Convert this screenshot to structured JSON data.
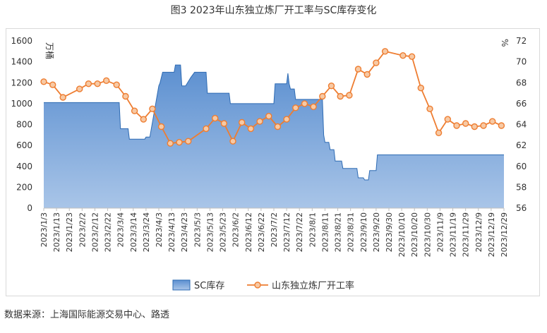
{
  "figure": {
    "title": "图3 2023年山东独立炼厂开工率与SC库存变化",
    "source": "数据来源：上海国际能源交易中心、路透"
  },
  "chart_data": {
    "type": "area",
    "title": "图3 2023年山东独立炼厂开工率与SC库存变化",
    "left_axis": {
      "unit_label": "万桶",
      "range": [
        0,
        1600
      ],
      "ticks": [
        0,
        200,
        400,
        600,
        800,
        1000,
        1200,
        1400,
        1600
      ]
    },
    "right_axis": {
      "unit_label": "%",
      "range": [
        56,
        72
      ],
      "ticks": [
        56,
        58,
        60,
        62,
        64,
        66,
        68,
        70,
        72
      ]
    },
    "x_tick_labels": [
      "2023/1/3",
      "2023/1/13",
      "2023/1/23",
      "2023/2/2",
      "2023/2/12",
      "2023/2/22",
      "2023/3/4",
      "2023/3/14",
      "2023/3/24",
      "2023/4/3",
      "2023/4/13",
      "2023/4/23",
      "2023/5/3",
      "2023/5/13",
      "2023/5/23",
      "2023/6/2",
      "2023/6/12",
      "2023/6/22",
      "2023/7/2",
      "2023/7/12",
      "2023/7/22",
      "2023/8/1",
      "2023/8/11",
      "2023/8/21",
      "2023/8/31",
      "2023/9/10",
      "2023/9/20",
      "2023/9/30",
      "2023/10/10",
      "2023/10/20",
      "2023/10/30",
      "2023/11/9",
      "2023/11/19",
      "2023/11/29",
      "2023/12/9",
      "2023/12/19",
      "2023/12/29"
    ],
    "legend": {
      "position": "bottom",
      "entries": [
        "SC库存",
        "山东独立炼厂开工率"
      ]
    },
    "grid": false,
    "colors": {
      "area_fill_top": "#5b8fd0",
      "area_fill_bottom": "#9ebde3",
      "area_stroke": "#2e6bb3",
      "line": "#ee7d31",
      "marker_fill": "#f7c9a4"
    },
    "series": [
      {
        "name": "SC库存",
        "type": "area",
        "axis": "left",
        "x": [
          "2023/1/3",
          "2023/3/3",
          "2023/3/4",
          "2023/3/10",
          "2023/3/11",
          "2023/3/23",
          "2023/3/24",
          "2023/3/27",
          "2023/4/3",
          "2023/4/4",
          "2023/4/6",
          "2023/4/15",
          "2023/4/16",
          "2023/4/20",
          "2023/4/21",
          "2023/4/24",
          "2023/4/28",
          "2023/5/1",
          "2023/5/5",
          "2023/5/10",
          "2023/5/11",
          "2023/5/28",
          "2023/5/29",
          "2023/6/15",
          "2023/6/16",
          "2023/7/2",
          "2023/7/3",
          "2023/7/12",
          "2023/7/13",
          "2023/7/14",
          "2023/7/15",
          "2023/7/18",
          "2023/7/19",
          "2023/7/31",
          "2023/8/1",
          "2023/8/8",
          "2023/8/9",
          "2023/8/10",
          "2023/8/11",
          "2023/8/14",
          "2023/8/15",
          "2023/8/18",
          "2023/8/19",
          "2023/8/24",
          "2023/8/25",
          "2023/8/31",
          "2023/9/5",
          "2023/9/6",
          "2023/9/10",
          "2023/9/11",
          "2023/9/14",
          "2023/9/15",
          "2023/9/20",
          "2023/9/21",
          "2023/12/29"
        ],
        "values": [
          1010,
          1010,
          760,
          760,
          660,
          660,
          680,
          680,
          1170,
          1200,
          1300,
          1300,
          1370,
          1370,
          1170,
          1170,
          1250,
          1300,
          1300,
          1300,
          1100,
          1100,
          1000,
          1000,
          1000,
          1000,
          1190,
          1190,
          1290,
          1190,
          1140,
          1140,
          1040,
          1040,
          1040,
          1040,
          1040,
          700,
          630,
          630,
          560,
          560,
          450,
          450,
          380,
          380,
          380,
          290,
          290,
          270,
          270,
          360,
          360,
          510,
          510
        ]
      },
      {
        "name": "山东独立炼厂开工率",
        "type": "line",
        "axis": "right",
        "x": [
          "2023/1/3",
          "2023/1/10",
          "2023/1/18",
          "2023/1/31",
          "2023/2/7",
          "2023/2/14",
          "2023/2/21",
          "2023/3/1",
          "2023/3/8",
          "2023/3/15",
          "2023/3/22",
          "2023/3/29",
          "2023/4/5",
          "2023/4/12",
          "2023/4/19",
          "2023/4/26",
          "2023/5/10",
          "2023/5/17",
          "2023/5/24",
          "2023/5/31",
          "2023/6/7",
          "2023/6/14",
          "2023/6/21",
          "2023/6/28",
          "2023/7/5",
          "2023/7/12",
          "2023/7/19",
          "2023/7/26",
          "2023/8/2",
          "2023/8/9",
          "2023/8/16",
          "2023/8/23",
          "2023/8/30",
          "2023/9/6",
          "2023/9/13",
          "2023/9/20",
          "2023/9/27",
          "2023/10/11",
          "2023/10/18",
          "2023/10/25",
          "2023/11/1",
          "2023/11/8",
          "2023/11/15",
          "2023/11/22",
          "2023/11/29",
          "2023/12/6",
          "2023/12/13",
          "2023/12/20",
          "2023/12/27"
        ],
        "values": [
          68.1,
          67.8,
          66.6,
          67.4,
          67.9,
          67.9,
          68.2,
          67.8,
          66.7,
          65.3,
          64.5,
          65.5,
          63.8,
          62.2,
          62.3,
          62.4,
          63.6,
          64.6,
          64.1,
          62.4,
          64.2,
          63.6,
          64.3,
          64.8,
          63.8,
          64.5,
          65.6,
          66.0,
          65.7,
          66.7,
          67.7,
          66.7,
          66.8,
          69.3,
          68.8,
          69.9,
          71.0,
          70.6,
          70.5,
          67.5,
          65.5,
          63.2,
          64.5,
          63.9,
          64.1,
          63.8,
          63.9,
          64.3,
          63.9
        ]
      }
    ]
  }
}
